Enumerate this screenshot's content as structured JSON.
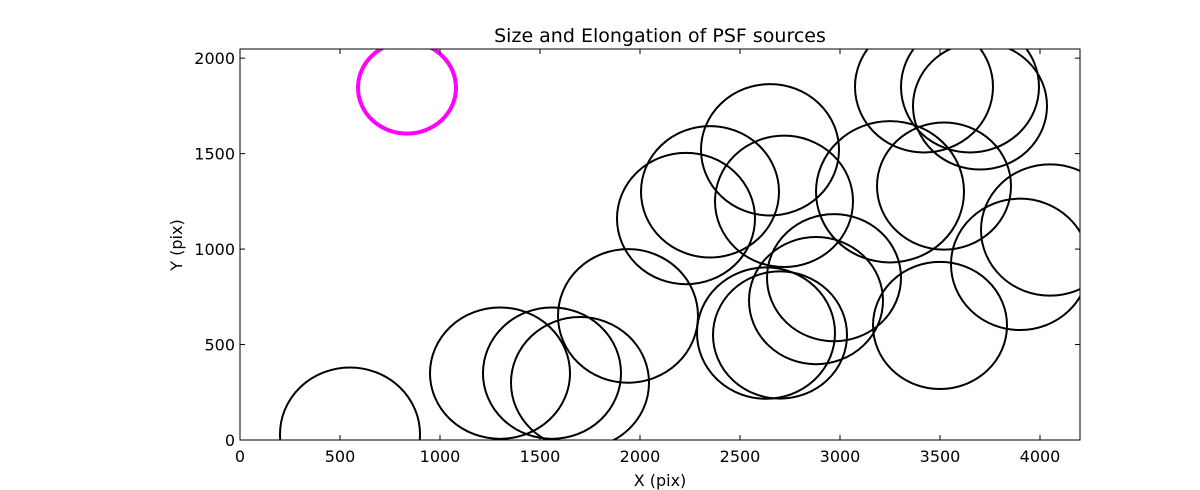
{
  "chart_data": {
    "type": "scatter",
    "title": "Size and Elongation of PSF sources",
    "xlabel": "X (pix)",
    "ylabel": "Y (pix)",
    "xlim": [
      0,
      4200
    ],
    "ylim": [
      0,
      2048
    ],
    "xticks": [
      0,
      500,
      1000,
      1500,
      2000,
      2500,
      3000,
      3500,
      4000
    ],
    "yticks": [
      0,
      500,
      1000,
      1500,
      2000
    ],
    "grid": false,
    "legend": "none",
    "marker": "ellipse (outline)",
    "colors": {
      "sources": "#000000",
      "highlight": "#ff00ff"
    },
    "series": [
      {
        "points": [
          {
            "x": 1300,
            "y": 350,
            "rx": 350,
            "ry": 344
          },
          {
            "x": 1560,
            "y": 350,
            "rx": 345,
            "ry": 344
          },
          {
            "x": 1700,
            "y": 300,
            "rx": 345,
            "ry": 344
          },
          {
            "x": 1940,
            "y": 650,
            "rx": 350,
            "ry": 350
          },
          {
            "x": 2230,
            "y": 1160,
            "rx": 345,
            "ry": 344
          },
          {
            "x": 2350,
            "y": 1300,
            "rx": 345,
            "ry": 344
          },
          {
            "x": 2630,
            "y": 560,
            "rx": 345,
            "ry": 344
          },
          {
            "x": 2700,
            "y": 550,
            "rx": 335,
            "ry": 333
          },
          {
            "x": 2650,
            "y": 1520,
            "rx": 345,
            "ry": 344
          },
          {
            "x": 2720,
            "y": 1250,
            "rx": 345,
            "ry": 344
          },
          {
            "x": 2880,
            "y": 730,
            "rx": 335,
            "ry": 333
          },
          {
            "x": 2970,
            "y": 850,
            "rx": 335,
            "ry": 333
          },
          {
            "x": 3250,
            "y": 1300,
            "rx": 370,
            "ry": 370
          },
          {
            "x": 3420,
            "y": 1850,
            "rx": 345,
            "ry": 344
          },
          {
            "x": 3500,
            "y": 600,
            "rx": 335,
            "ry": 333
          },
          {
            "x": 3520,
            "y": 1330,
            "rx": 335,
            "ry": 333
          },
          {
            "x": 3650,
            "y": 1850,
            "rx": 345,
            "ry": 344
          },
          {
            "x": 3700,
            "y": 1750,
            "rx": 335,
            "ry": 333
          },
          {
            "x": 3900,
            "y": 920,
            "rx": 345,
            "ry": 344
          },
          {
            "x": 4050,
            "y": 1100,
            "rx": 345,
            "ry": 344
          },
          {
            "x": 550,
            "y": 30,
            "rx": 350,
            "ry": 350
          }
        ]
      },
      {
        "points": [
          {
            "x": 835,
            "y": 1845,
            "rx": 245,
            "ry": 240
          }
        ]
      }
    ]
  }
}
